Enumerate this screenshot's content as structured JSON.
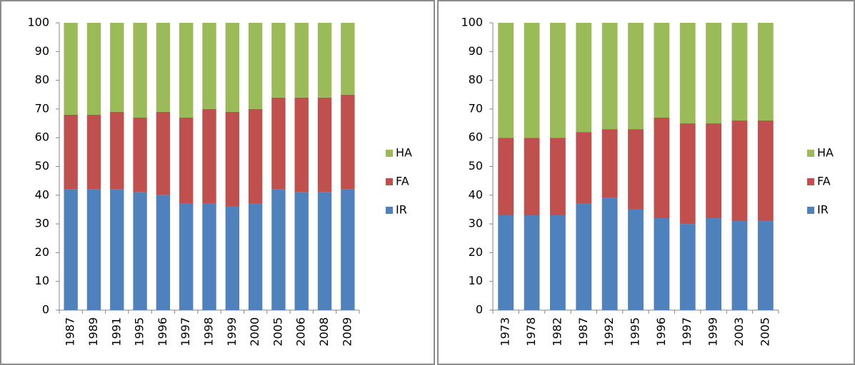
{
  "chart_data": [
    {
      "type": "bar",
      "stacked": true,
      "categories": [
        "1987",
        "1989",
        "1991",
        "1995",
        "1996",
        "1997",
        "1998",
        "1999",
        "2000",
        "2005",
        "2006",
        "2008",
        "2009"
      ],
      "series": [
        {
          "name": "IR",
          "color": "#4f81bd",
          "values": [
            42,
            42,
            42,
            41,
            40,
            37,
            37,
            36,
            37,
            42,
            41,
            41,
            42
          ]
        },
        {
          "name": "FA",
          "color": "#c0504d",
          "values": [
            26,
            26,
            27,
            26,
            29,
            30,
            33,
            33,
            33,
            32,
            33,
            33,
            33
          ]
        },
        {
          "name": "HA",
          "color": "#9bbb59",
          "values": [
            32,
            32,
            31,
            33,
            31,
            33,
            30,
            31,
            30,
            26,
            26,
            26,
            25
          ]
        }
      ],
      "ylim": [
        0,
        100
      ],
      "yticks": [
        0,
        10,
        20,
        30,
        40,
        50,
        60,
        70,
        80,
        90,
        100
      ],
      "legend": "right"
    },
    {
      "type": "bar",
      "stacked": true,
      "categories": [
        "1973",
        "1978",
        "1982",
        "1987",
        "1992",
        "1995",
        "1996",
        "1997",
        "1999",
        "2003",
        "2005"
      ],
      "series": [
        {
          "name": "IR",
          "color": "#4f81bd",
          "values": [
            33,
            33,
            33,
            37,
            39,
            35,
            32,
            30,
            32,
            31,
            31
          ]
        },
        {
          "name": "FA",
          "color": "#c0504d",
          "values": [
            27,
            27,
            27,
            25,
            24,
            28,
            35,
            35,
            33,
            35,
            35
          ]
        },
        {
          "name": "HA",
          "color": "#9bbb59",
          "values": [
            40,
            40,
            40,
            38,
            37,
            37,
            33,
            35,
            35,
            34,
            34
          ]
        }
      ],
      "ylim": [
        0,
        100
      ],
      "yticks": [
        0,
        10,
        20,
        30,
        40,
        50,
        60,
        70,
        80,
        90,
        100
      ],
      "legend": "right"
    }
  ]
}
